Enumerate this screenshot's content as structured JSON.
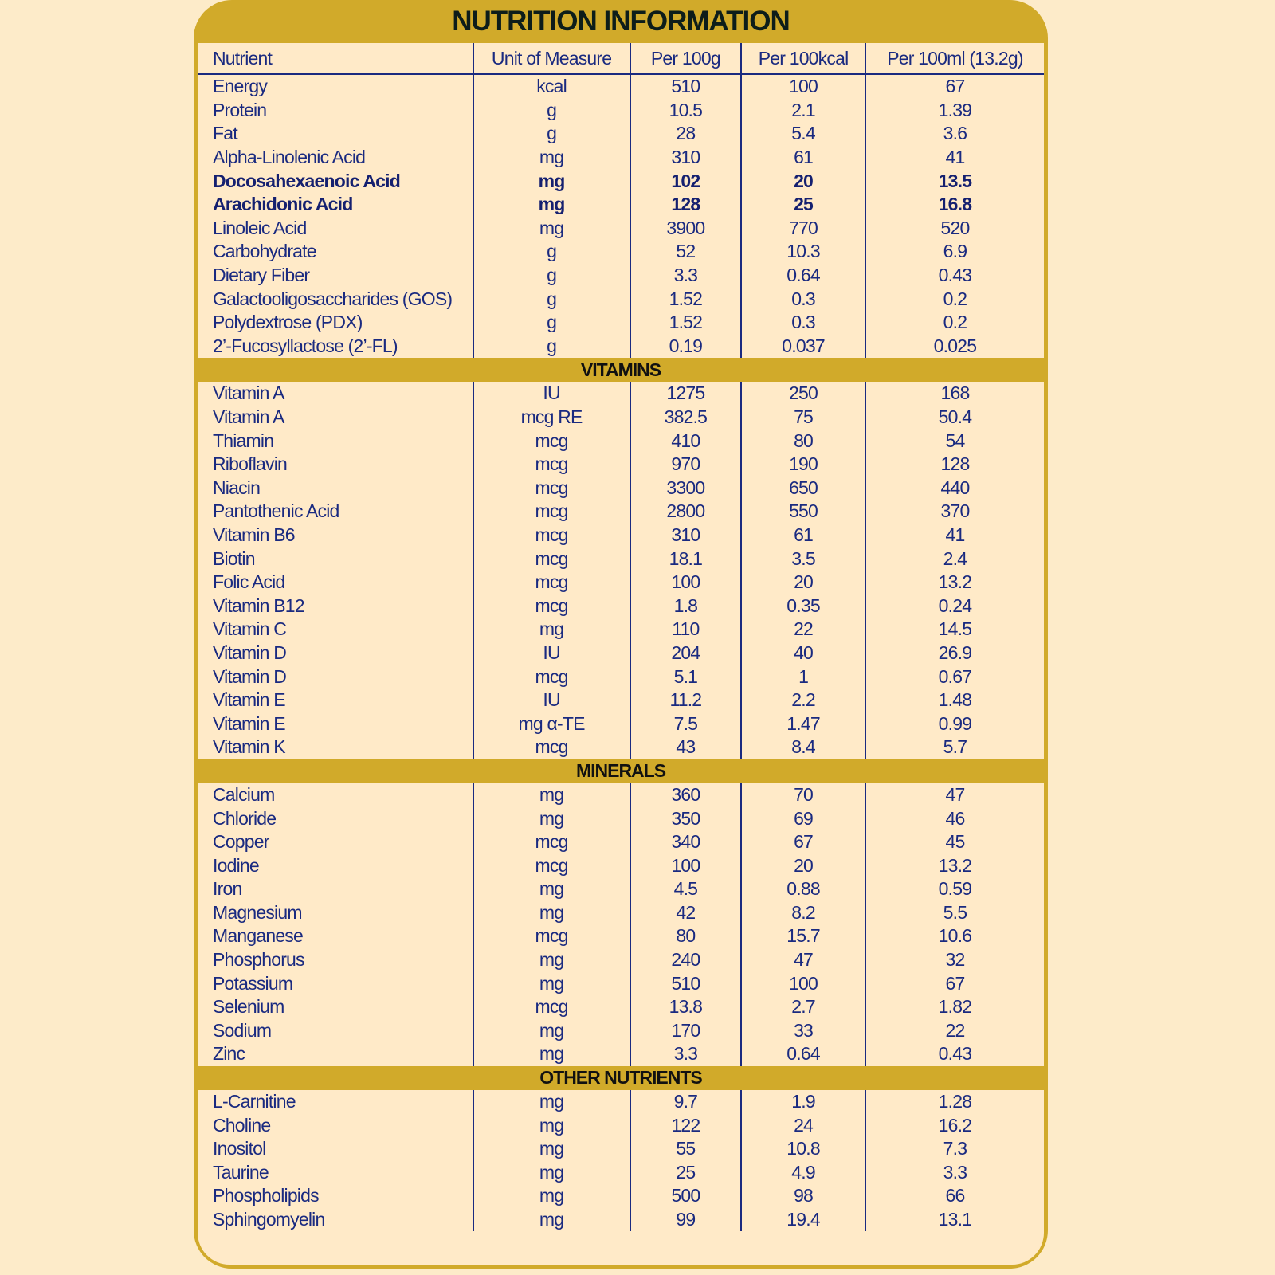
{
  "title": "NUTRITION INFORMATION",
  "columns": [
    "Nutrient",
    "Unit of Measure",
    "Per 100g",
    "Per 100kcal",
    "Per 100ml (13.2g)"
  ],
  "colors": {
    "gold": "#d1aa2a",
    "navy": "#1a2a80",
    "background": "#ffeac8"
  },
  "sections": [
    {
      "heading": "",
      "rows": [
        [
          "Energy",
          "kcal",
          "510",
          "100",
          "67"
        ],
        [
          "Protein",
          "g",
          "10.5",
          "2.1",
          "1.39"
        ],
        [
          "Fat",
          "g",
          "28",
          "5.4",
          "3.6"
        ],
        [
          "Alpha-Linolenic Acid",
          "mg",
          "310",
          "61",
          "41"
        ],
        [
          "Docosahexaenoic Acid",
          "mg",
          "102",
          "20",
          "13.5"
        ],
        [
          "Arachidonic Acid",
          "mg",
          "128",
          "25",
          "16.8"
        ],
        [
          "Linoleic Acid",
          "mg",
          "3900",
          "770",
          "520"
        ],
        [
          "Carbohydrate",
          "g",
          "52",
          "10.3",
          "6.9"
        ],
        [
          "Dietary Fiber",
          "g",
          "3.3",
          "0.64",
          "0.43"
        ],
        [
          "Galactooligosaccharides (GOS)",
          "g",
          "1.52",
          "0.3",
          "0.2"
        ],
        [
          "Polydextrose (PDX)",
          "g",
          "1.52",
          "0.3",
          "0.2"
        ],
        [
          "2’-Fucosyllactose (2’-FL)",
          "g",
          "0.19",
          "0.037",
          "0.025"
        ]
      ],
      "bold_rows": [
        4,
        5
      ]
    },
    {
      "heading": "VITAMINS",
      "rows": [
        [
          "Vitamin A",
          "IU",
          "1275",
          "250",
          "168"
        ],
        [
          "Vitamin A",
          "mcg RE",
          "382.5",
          "75",
          "50.4"
        ],
        [
          "Thiamin",
          "mcg",
          "410",
          "80",
          "54"
        ],
        [
          "Riboflavin",
          "mcg",
          "970",
          "190",
          "128"
        ],
        [
          "Niacin",
          "mcg",
          "3300",
          "650",
          "440"
        ],
        [
          "Pantothenic Acid",
          "mcg",
          "2800",
          "550",
          "370"
        ],
        [
          "Vitamin B6",
          "mcg",
          "310",
          "61",
          "41"
        ],
        [
          "Biotin",
          "mcg",
          "18.1",
          "3.5",
          "2.4"
        ],
        [
          "Folic Acid",
          "mcg",
          "100",
          "20",
          "13.2"
        ],
        [
          "Vitamin B12",
          "mcg",
          "1.8",
          "0.35",
          "0.24"
        ],
        [
          "Vitamin C",
          "mg",
          "110",
          "22",
          "14.5"
        ],
        [
          "Vitamin D",
          "IU",
          "204",
          "40",
          "26.9"
        ],
        [
          "Vitamin D",
          "mcg",
          "5.1",
          "1",
          "0.67"
        ],
        [
          "Vitamin E",
          "IU",
          "11.2",
          "2.2",
          "1.48"
        ],
        [
          "Vitamin E",
          "mg α-TE",
          "7.5",
          "1.47",
          "0.99"
        ],
        [
          "Vitamin K",
          "mcg",
          "43",
          "8.4",
          "5.7"
        ]
      ]
    },
    {
      "heading": "MINERALS",
      "rows": [
        [
          "Calcium",
          "mg",
          "360",
          "70",
          "47"
        ],
        [
          "Chloride",
          "mg",
          "350",
          "69",
          "46"
        ],
        [
          "Copper",
          "mcg",
          "340",
          "67",
          "45"
        ],
        [
          "Iodine",
          "mcg",
          "100",
          "20",
          "13.2"
        ],
        [
          "Iron",
          "mg",
          "4.5",
          "0.88",
          "0.59"
        ],
        [
          "Magnesium",
          "mg",
          "42",
          "8.2",
          "5.5"
        ],
        [
          "Manganese",
          "mcg",
          "80",
          "15.7",
          "10.6"
        ],
        [
          "Phosphorus",
          "mg",
          "240",
          "47",
          "32"
        ],
        [
          "Potassium",
          "mg",
          "510",
          "100",
          "67"
        ],
        [
          "Selenium",
          "mcg",
          "13.8",
          "2.7",
          "1.82"
        ],
        [
          "Sodium",
          "mg",
          "170",
          "33",
          "22"
        ],
        [
          "Zinc",
          "mg",
          "3.3",
          "0.64",
          "0.43"
        ]
      ]
    },
    {
      "heading": "OTHER NUTRIENTS",
      "rows": [
        [
          "L-Carnitine",
          "mg",
          "9.7",
          "1.9",
          "1.28"
        ],
        [
          "Choline",
          "mg",
          "122",
          "24",
          "16.2"
        ],
        [
          "Inositol",
          "mg",
          "55",
          "10.8",
          "7.3"
        ],
        [
          "Taurine",
          "mg",
          "25",
          "4.9",
          "3.3"
        ],
        [
          "Phospholipids",
          "mg",
          "500",
          "98",
          "66"
        ],
        [
          "Sphingomyelin",
          "mg",
          "99",
          "19.4",
          "13.1"
        ]
      ]
    }
  ]
}
